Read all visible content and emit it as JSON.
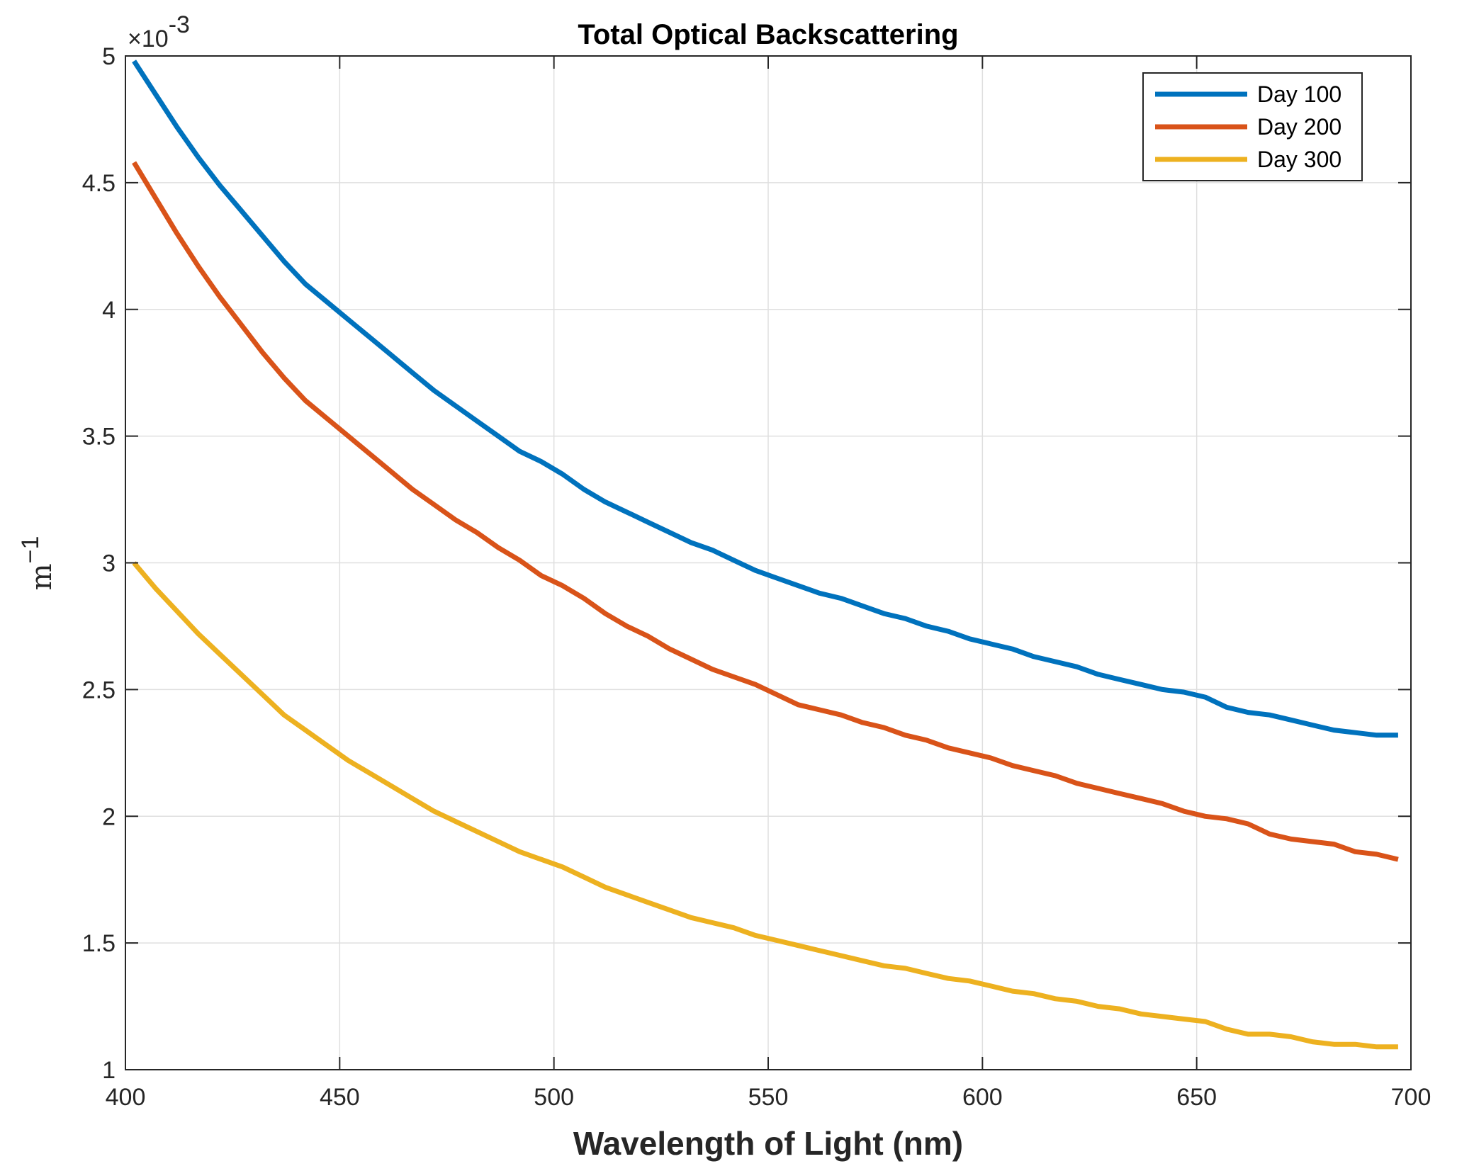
{
  "chart_data": {
    "type": "line",
    "title": "Total Optical Backscattering",
    "xlabel": "Wavelength of Light (nm)",
    "ylabel": "m",
    "ylabel_exponent": "−1",
    "y_multiplier": {
      "base": "×10",
      "exponent": "-3"
    },
    "xlim": [
      400,
      700
    ],
    "ylim": [
      1,
      5
    ],
    "xticks": [
      400,
      450,
      500,
      550,
      600,
      650,
      700
    ],
    "yticks": [
      1,
      1.5,
      2,
      2.5,
      3,
      3.5,
      4,
      4.5,
      5
    ],
    "ytick_labels": [
      "1",
      "1.5",
      "2",
      "2.5",
      "3",
      "3.5",
      "4",
      "4.5",
      "5"
    ],
    "grid": true,
    "legend_position": "top-right",
    "x": [
      402,
      407,
      412,
      417,
      422,
      427,
      432,
      437,
      442,
      447,
      452,
      457,
      462,
      467,
      472,
      477,
      482,
      487,
      492,
      497,
      502,
      507,
      512,
      517,
      522,
      527,
      532,
      537,
      542,
      547,
      552,
      557,
      562,
      567,
      572,
      577,
      582,
      587,
      592,
      597,
      602,
      607,
      612,
      617,
      622,
      627,
      632,
      637,
      642,
      647,
      652,
      657,
      662,
      667,
      672,
      677,
      682,
      687,
      692,
      697
    ],
    "series": [
      {
        "name": "Day 100",
        "color": "#0072BD",
        "values": [
          4.98,
          4.85,
          4.72,
          4.6,
          4.49,
          4.39,
          4.29,
          4.19,
          4.1,
          4.03,
          3.96,
          3.89,
          3.82,
          3.75,
          3.68,
          3.62,
          3.56,
          3.5,
          3.44,
          3.4,
          3.35,
          3.29,
          3.24,
          3.2,
          3.16,
          3.12,
          3.08,
          3.05,
          3.01,
          2.97,
          2.94,
          2.91,
          2.88,
          2.86,
          2.83,
          2.8,
          2.78,
          2.75,
          2.73,
          2.7,
          2.68,
          2.66,
          2.63,
          2.61,
          2.59,
          2.56,
          2.54,
          2.52,
          2.5,
          2.49,
          2.47,
          2.43,
          2.41,
          2.4,
          2.38,
          2.36,
          2.34,
          2.33,
          2.32,
          2.32
        ]
      },
      {
        "name": "Day 200",
        "color": "#D95319",
        "values": [
          4.58,
          4.44,
          4.3,
          4.17,
          4.05,
          3.94,
          3.83,
          3.73,
          3.64,
          3.57,
          3.5,
          3.43,
          3.36,
          3.29,
          3.23,
          3.17,
          3.12,
          3.06,
          3.01,
          2.95,
          2.91,
          2.86,
          2.8,
          2.75,
          2.71,
          2.66,
          2.62,
          2.58,
          2.55,
          2.52,
          2.48,
          2.44,
          2.42,
          2.4,
          2.37,
          2.35,
          2.32,
          2.3,
          2.27,
          2.25,
          2.23,
          2.2,
          2.18,
          2.16,
          2.13,
          2.11,
          2.09,
          2.07,
          2.05,
          2.02,
          2.0,
          1.99,
          1.97,
          1.93,
          1.91,
          1.9,
          1.89,
          1.86,
          1.85,
          1.83
        ]
      },
      {
        "name": "Day 300",
        "color": "#EDB120",
        "values": [
          3.0,
          2.9,
          2.81,
          2.72,
          2.64,
          2.56,
          2.48,
          2.4,
          2.34,
          2.28,
          2.22,
          2.17,
          2.12,
          2.07,
          2.02,
          1.98,
          1.94,
          1.9,
          1.86,
          1.83,
          1.8,
          1.76,
          1.72,
          1.69,
          1.66,
          1.63,
          1.6,
          1.58,
          1.56,
          1.53,
          1.51,
          1.49,
          1.47,
          1.45,
          1.43,
          1.41,
          1.4,
          1.38,
          1.36,
          1.35,
          1.33,
          1.31,
          1.3,
          1.28,
          1.27,
          1.25,
          1.24,
          1.22,
          1.21,
          1.2,
          1.19,
          1.16,
          1.14,
          1.14,
          1.13,
          1.11,
          1.1,
          1.1,
          1.09,
          1.09
        ]
      }
    ]
  }
}
